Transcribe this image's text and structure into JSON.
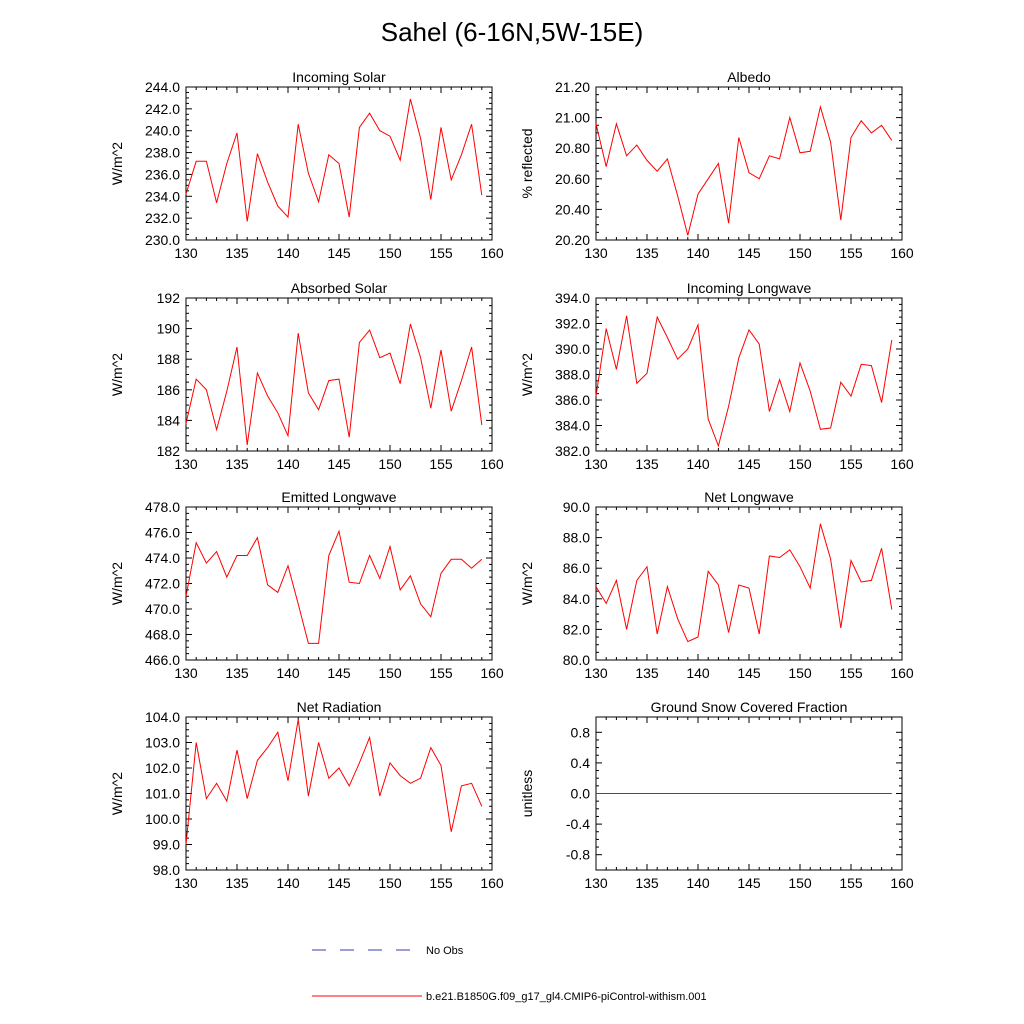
{
  "page": {
    "title": "Sahel (6-16N,5W-15E)"
  },
  "legend": {
    "items": [
      {
        "label": "No Obs",
        "color": "#3b3bb0",
        "style": "dashed"
      },
      {
        "label": "b.e21.B1850G.f09_g17_gl4.CMIP6-piControl-withism.001",
        "color": "#ff0000",
        "style": "solid"
      }
    ]
  },
  "chart_data": [
    {
      "type": "line",
      "title": "Incoming Solar",
      "xlabel": "",
      "ylabel": "W/m^2",
      "xlim": [
        130,
        160
      ],
      "ylim": [
        230,
        244
      ],
      "xticks": [
        130,
        135,
        140,
        145,
        150,
        155,
        160
      ],
      "yticks": [
        230,
        232,
        234,
        236,
        238,
        240,
        242,
        244
      ],
      "ytick_labels": [
        "230.0",
        "232.0",
        "234.0",
        "236.0",
        "238.0",
        "240.0",
        "242.0",
        "244.0"
      ],
      "series": [
        {
          "color": "#ff0000",
          "x": [
            130,
            131,
            132,
            133,
            134,
            135,
            136,
            137,
            138,
            139,
            140,
            141,
            142,
            143,
            144,
            145,
            146,
            147,
            148,
            149,
            150,
            151,
            152,
            153,
            154,
            155,
            156,
            157,
            158,
            159
          ],
          "values": [
            234.2,
            237.2,
            237.2,
            233.4,
            237.0,
            239.8,
            231.7,
            237.9,
            235.3,
            233.1,
            232.1,
            240.6,
            236.1,
            233.5,
            237.8,
            237.0,
            232.1,
            240.3,
            241.6,
            240.0,
            239.5,
            237.3,
            242.9,
            239.3,
            233.7,
            240.3,
            235.5,
            237.8,
            240.6,
            234.1
          ]
        }
      ]
    },
    {
      "type": "line",
      "title": "Albedo",
      "xlabel": "",
      "ylabel": "% reflected",
      "xlim": [
        130,
        160
      ],
      "ylim": [
        20.2,
        21.2
      ],
      "xticks": [
        130,
        135,
        140,
        145,
        150,
        155,
        160
      ],
      "yticks": [
        20.2,
        20.4,
        20.6,
        20.8,
        21.0,
        21.2
      ],
      "ytick_labels": [
        "20.20",
        "20.40",
        "20.60",
        "20.80",
        "21.00",
        "21.20"
      ],
      "series": [
        {
          "color": "#ff0000",
          "x": [
            130,
            131,
            132,
            133,
            134,
            135,
            136,
            137,
            138,
            139,
            140,
            141,
            142,
            143,
            144,
            145,
            146,
            147,
            148,
            149,
            150,
            151,
            152,
            153,
            154,
            155,
            156,
            157,
            158,
            159
          ],
          "values": [
            20.96,
            20.68,
            20.96,
            20.75,
            20.82,
            20.72,
            20.65,
            20.73,
            20.49,
            20.23,
            20.5,
            20.6,
            20.7,
            20.31,
            20.87,
            20.64,
            20.6,
            20.75,
            20.73,
            21.0,
            20.77,
            20.78,
            21.07,
            20.84,
            20.33,
            20.87,
            20.98,
            20.9,
            20.95,
            20.85
          ]
        }
      ]
    },
    {
      "type": "line",
      "title": "Absorbed Solar",
      "xlabel": "",
      "ylabel": "W/m^2",
      "xlim": [
        130,
        160
      ],
      "ylim": [
        182,
        192
      ],
      "xticks": [
        130,
        135,
        140,
        145,
        150,
        155,
        160
      ],
      "yticks": [
        182,
        184,
        186,
        188,
        190,
        192
      ],
      "ytick_labels": [
        "182",
        "184",
        "186",
        "188",
        "190",
        "192"
      ],
      "series": [
        {
          "color": "#ff0000",
          "x": [
            130,
            131,
            132,
            133,
            134,
            135,
            136,
            137,
            138,
            139,
            140,
            141,
            142,
            143,
            144,
            145,
            146,
            147,
            148,
            149,
            150,
            151,
            152,
            153,
            154,
            155,
            156,
            157,
            158,
            159
          ],
          "values": [
            183.8,
            186.7,
            186.0,
            183.4,
            185.9,
            188.8,
            182.4,
            187.1,
            185.6,
            184.5,
            183.0,
            189.7,
            185.8,
            184.7,
            186.6,
            186.7,
            182.9,
            189.1,
            189.9,
            188.1,
            188.4,
            186.4,
            190.3,
            188.1,
            184.8,
            188.6,
            184.6,
            186.6,
            188.8,
            183.7
          ]
        }
      ]
    },
    {
      "type": "line",
      "title": "Incoming Longwave",
      "xlabel": "",
      "ylabel": "W/m^2",
      "xlim": [
        130,
        160
      ],
      "ylim": [
        382,
        394
      ],
      "xticks": [
        130,
        135,
        140,
        145,
        150,
        155,
        160
      ],
      "yticks": [
        382,
        384,
        386,
        388,
        390,
        392,
        394
      ],
      "ytick_labels": [
        "382.0",
        "384.0",
        "386.0",
        "388.0",
        "390.0",
        "392.0",
        "394.0"
      ],
      "series": [
        {
          "color": "#ff0000",
          "x": [
            130,
            131,
            132,
            133,
            134,
            135,
            136,
            137,
            138,
            139,
            140,
            141,
            142,
            143,
            144,
            145,
            146,
            147,
            148,
            149,
            150,
            151,
            152,
            153,
            154,
            155,
            156,
            157,
            158,
            159
          ],
          "values": [
            386.3,
            391.6,
            388.4,
            392.6,
            387.3,
            388.1,
            392.5,
            390.9,
            389.2,
            390.0,
            391.9,
            384.5,
            382.4,
            385.5,
            389.3,
            391.5,
            390.4,
            385.1,
            387.6,
            385.1,
            388.9,
            386.7,
            383.7,
            383.8,
            387.4,
            386.3,
            388.8,
            388.7,
            385.8,
            390.7
          ]
        }
      ]
    },
    {
      "type": "line",
      "title": "Emitted Longwave",
      "xlabel": "",
      "ylabel": "W/m^2",
      "xlim": [
        130,
        160
      ],
      "ylim": [
        466,
        478
      ],
      "xticks": [
        130,
        135,
        140,
        145,
        150,
        155,
        160
      ],
      "yticks": [
        466,
        468,
        470,
        472,
        474,
        476,
        478
      ],
      "ytick_labels": [
        "466.0",
        "468.0",
        "470.0",
        "472.0",
        "474.0",
        "476.0",
        "478.0"
      ],
      "series": [
        {
          "color": "#ff0000",
          "x": [
            130,
            131,
            132,
            133,
            134,
            135,
            136,
            137,
            138,
            139,
            140,
            141,
            142,
            143,
            144,
            145,
            146,
            147,
            148,
            149,
            150,
            151,
            152,
            153,
            154,
            155,
            156,
            157,
            158,
            159
          ],
          "values": [
            471.0,
            475.2,
            473.6,
            474.5,
            472.5,
            474.2,
            474.2,
            475.6,
            471.9,
            471.3,
            473.4,
            470.4,
            467.3,
            467.3,
            474.2,
            476.1,
            472.1,
            472.0,
            474.2,
            472.4,
            474.9,
            471.5,
            472.6,
            470.4,
            469.4,
            472.8,
            473.9,
            473.9,
            473.2,
            473.9
          ]
        }
      ]
    },
    {
      "type": "line",
      "title": "Net Longwave",
      "xlabel": "",
      "ylabel": "W/m^2",
      "xlim": [
        130,
        160
      ],
      "ylim": [
        80,
        90
      ],
      "xticks": [
        130,
        135,
        140,
        145,
        150,
        155,
        160
      ],
      "yticks": [
        80,
        82,
        84,
        86,
        88,
        90
      ],
      "ytick_labels": [
        "80.0",
        "82.0",
        "84.0",
        "86.0",
        "88.0",
        "90.0"
      ],
      "series": [
        {
          "color": "#ff0000",
          "x": [
            130,
            131,
            132,
            133,
            134,
            135,
            136,
            137,
            138,
            139,
            140,
            141,
            142,
            143,
            144,
            145,
            146,
            147,
            148,
            149,
            150,
            151,
            152,
            153,
            154,
            155,
            156,
            157,
            158,
            159
          ],
          "values": [
            84.8,
            83.7,
            85.2,
            82.0,
            85.2,
            86.1,
            81.7,
            84.8,
            82.7,
            81.2,
            81.5,
            85.8,
            84.9,
            81.8,
            84.9,
            84.7,
            81.7,
            86.8,
            86.7,
            87.2,
            86.1,
            84.7,
            88.9,
            86.6,
            82.1,
            86.5,
            85.1,
            85.2,
            87.3,
            83.3
          ]
        }
      ]
    },
    {
      "type": "line",
      "title": "Net Radiation",
      "xlabel": "",
      "ylabel": "W/m^2",
      "xlim": [
        130,
        160
      ],
      "ylim": [
        98,
        104
      ],
      "xticks": [
        130,
        135,
        140,
        145,
        150,
        155,
        160
      ],
      "yticks": [
        98,
        99,
        100,
        101,
        102,
        103,
        104
      ],
      "ytick_labels": [
        "98.0",
        "99.0",
        "100.0",
        "101.0",
        "102.0",
        "103.0",
        "104.0"
      ],
      "series": [
        {
          "color": "#ff0000",
          "x": [
            130,
            131,
            132,
            133,
            134,
            135,
            136,
            137,
            138,
            139,
            140,
            141,
            142,
            143,
            144,
            145,
            146,
            147,
            148,
            149,
            150,
            151,
            152,
            153,
            154,
            155,
            156,
            157,
            158,
            159
          ],
          "values": [
            99.0,
            103.0,
            100.8,
            101.4,
            100.7,
            102.7,
            100.8,
            102.3,
            102.8,
            103.4,
            101.5,
            103.9,
            100.9,
            103.0,
            101.6,
            102.0,
            101.3,
            102.2,
            103.2,
            100.9,
            102.2,
            101.7,
            101.4,
            101.6,
            102.8,
            102.1,
            99.5,
            101.3,
            101.4,
            100.5
          ]
        }
      ]
    },
    {
      "type": "line",
      "title": "Ground Snow Covered Fraction",
      "xlabel": "",
      "ylabel": "unitless",
      "xlim": [
        130,
        160
      ],
      "ylim": [
        -1.0,
        1.0
      ],
      "xticks": [
        130,
        135,
        140,
        145,
        150,
        155,
        160
      ],
      "yticks": [
        -0.8,
        -0.4,
        0.0,
        0.4,
        0.8
      ],
      "ytick_labels": [
        "-0.8",
        "-0.4",
        "0.0",
        "0.4",
        "0.8"
      ],
      "series": [
        {
          "color": "#ff0000",
          "x": [
            130,
            131,
            132,
            133,
            134,
            135,
            136,
            137,
            138,
            139,
            140,
            141,
            142,
            143,
            144,
            145,
            146,
            147,
            148,
            149,
            150,
            151,
            152,
            153,
            154,
            155,
            156,
            157,
            158,
            159
          ],
          "values": [
            0,
            0,
            0,
            0,
            0,
            0,
            0,
            0,
            0,
            0,
            0,
            0,
            0,
            0,
            0,
            0,
            0,
            0,
            0,
            0,
            0,
            0,
            0,
            0,
            0,
            0,
            0,
            0,
            0,
            0
          ]
        }
      ]
    }
  ]
}
